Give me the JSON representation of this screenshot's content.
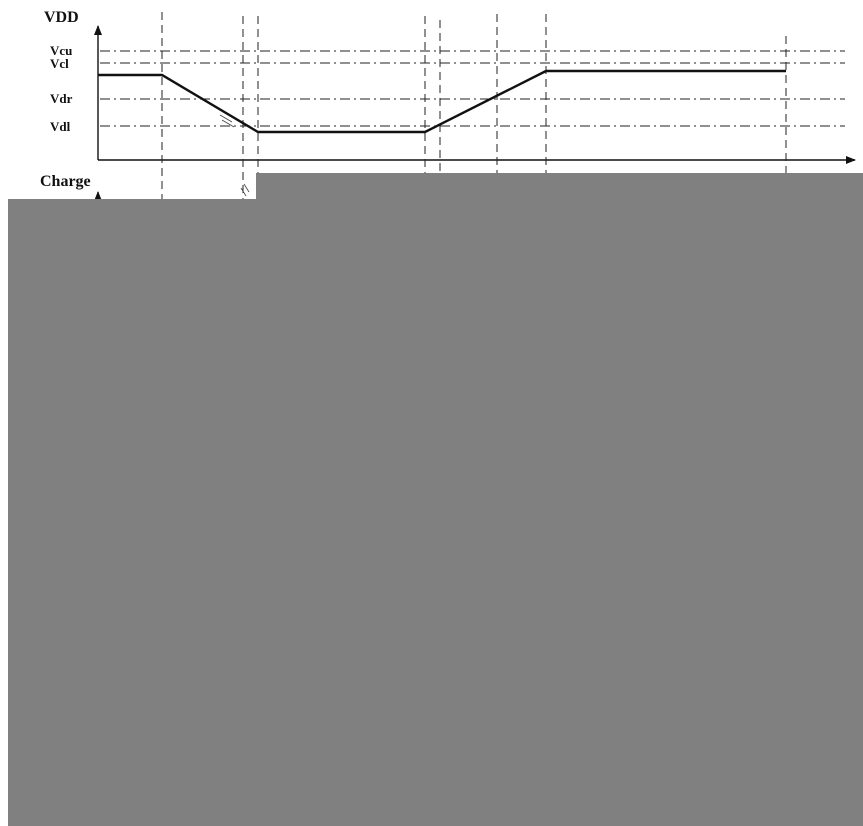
{
  "diagram": {
    "top_axis_label": "VDD",
    "bottom_axis_label": "Charge",
    "levels": [
      {
        "key": "vcu",
        "label": "Vcu"
      },
      {
        "key": "vcl",
        "label": "Vcl"
      },
      {
        "key": "vdr",
        "label": "Vdr"
      },
      {
        "key": "vdl",
        "label": "Vdl"
      }
    ]
  },
  "colors": {
    "background": "#ffffff",
    "line": "#111111",
    "redaction": "#808080"
  }
}
